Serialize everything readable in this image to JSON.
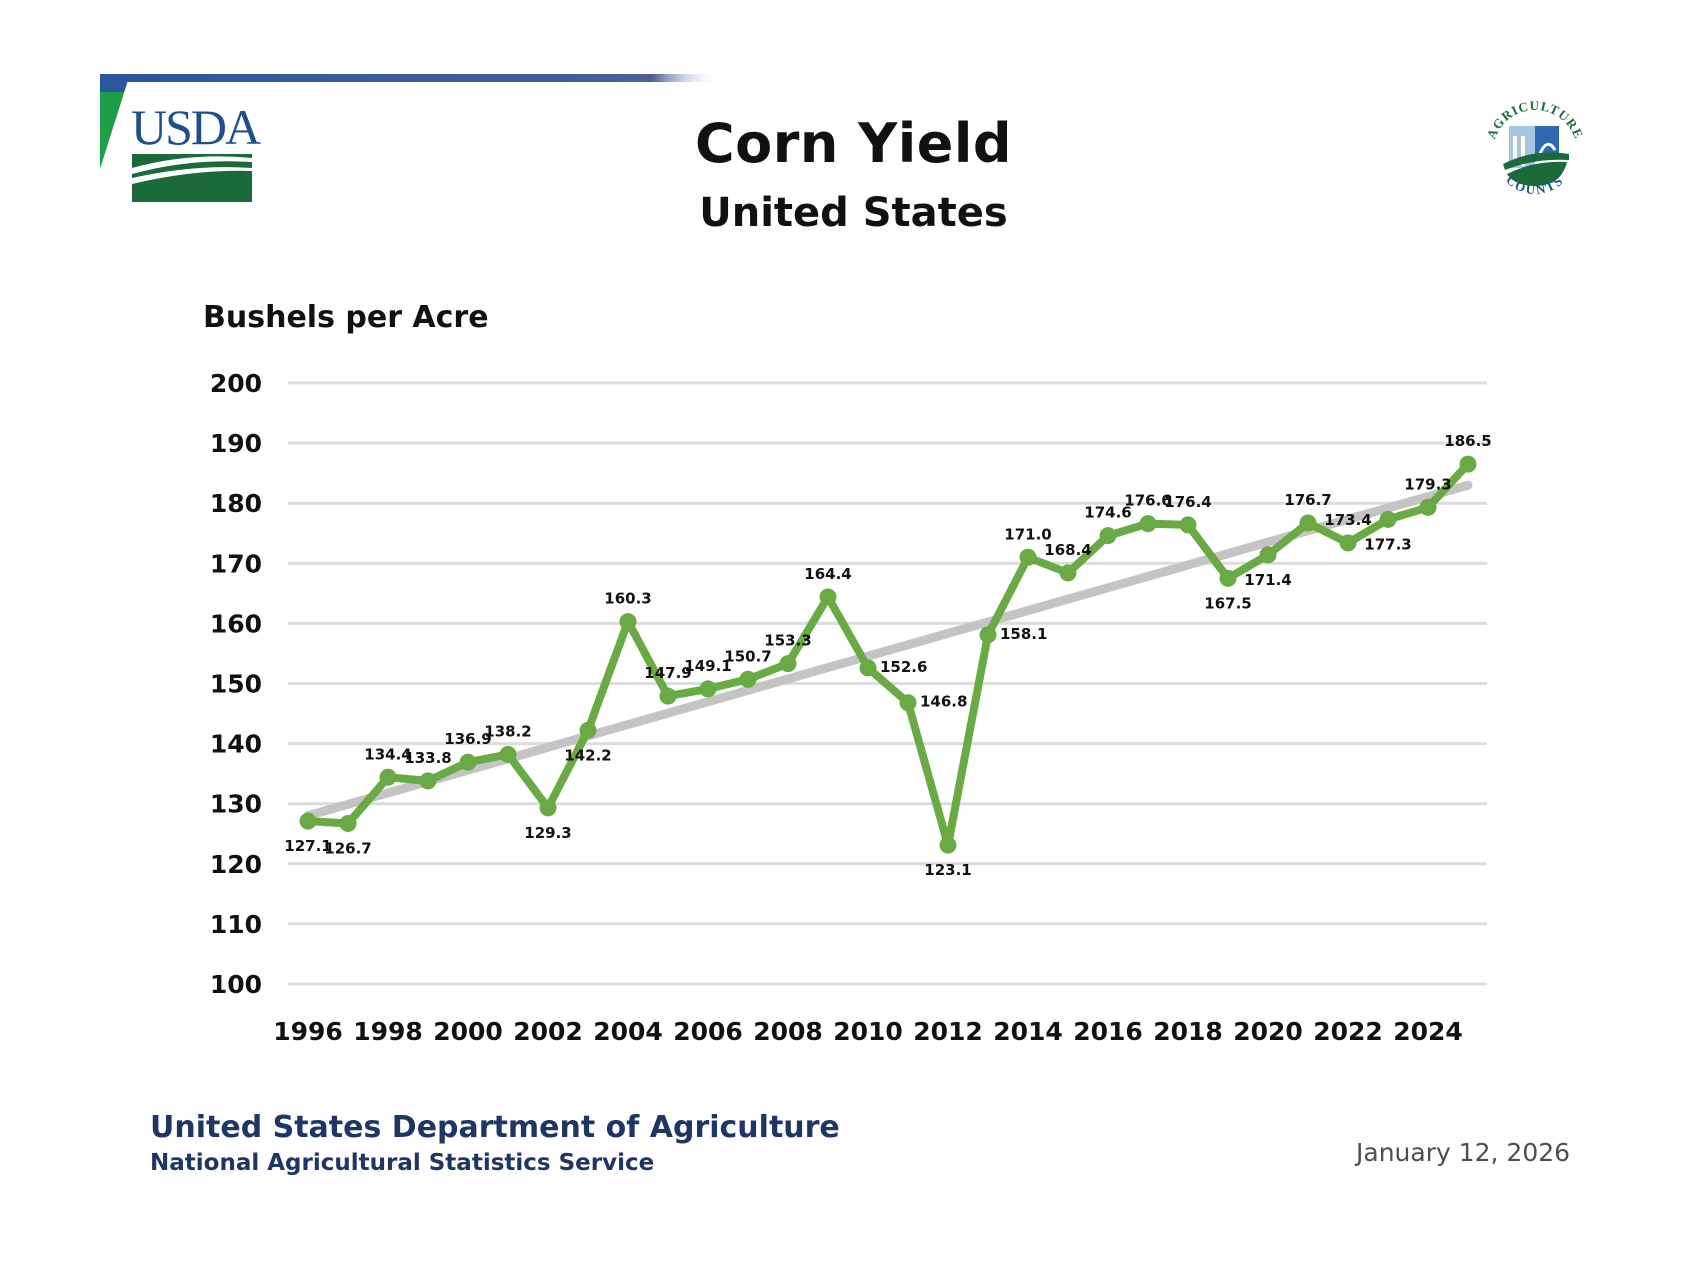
{
  "header": {
    "logo_text": "USDA",
    "badge_top_text": "AGRICULTURE",
    "badge_bottom_text": "COUNTS"
  },
  "footer": {
    "organization": "United States Department of Agriculture",
    "agency": "National Agricultural Statistics Service",
    "date": "January 12, 2026"
  },
  "colors": {
    "series": "#6aaa44",
    "trend": "#c4c4c4",
    "grid": "#dcdcdc",
    "usda_blue": "#1f4e8c",
    "usda_green": "#1b6b3a",
    "footer_blue": "#1f3564"
  },
  "chart_data": {
    "type": "line",
    "title": "Corn Yield",
    "subtitle": "United States",
    "xlabel": "",
    "ylabel": "Bushels per Acre",
    "ylim": [
      100,
      200
    ],
    "xlim": [
      1996,
      2025
    ],
    "grid": true,
    "legend": "none",
    "y_ticks": [
      "200",
      "190",
      "180",
      "170",
      "160",
      "150",
      "140",
      "130",
      "120",
      "110",
      "100"
    ],
    "y_tick_values": [
      200,
      190,
      180,
      170,
      160,
      150,
      140,
      130,
      120,
      110,
      100
    ],
    "x_ticks": [
      "1996",
      "1998",
      "2000",
      "2002",
      "2004",
      "2006",
      "2008",
      "2010",
      "2012",
      "2014",
      "2016",
      "2018",
      "2020",
      "2022",
      "2024"
    ],
    "x_tick_values": [
      1996,
      1998,
      2000,
      2002,
      2004,
      2006,
      2008,
      2010,
      2012,
      2014,
      2016,
      2018,
      2020,
      2022,
      2024
    ],
    "series": [
      {
        "name": "Corn Yield",
        "x": [
          1996,
          1997,
          1998,
          1999,
          2000,
          2001,
          2002,
          2003,
          2004,
          2005,
          2006,
          2007,
          2008,
          2009,
          2010,
          2011,
          2012,
          2013,
          2014,
          2015,
          2016,
          2017,
          2018,
          2019,
          2020,
          2021,
          2022,
          2023,
          2024,
          2025
        ],
        "values": [
          127.1,
          126.7,
          134.4,
          133.8,
          136.9,
          138.2,
          129.3,
          142.2,
          160.3,
          147.9,
          149.1,
          150.7,
          153.3,
          164.4,
          152.6,
          146.8,
          123.1,
          158.1,
          171.0,
          168.4,
          174.6,
          176.6,
          176.4,
          167.5,
          171.4,
          176.7,
          173.4,
          177.3,
          179.3,
          186.5
        ],
        "labels": [
          "127.1",
          "126.7",
          "134.4",
          "133.8",
          "136.9",
          "138.2",
          "129.3",
          "142.2",
          "160.3",
          "147.9",
          "149.1",
          "150.7",
          "153.3",
          "164.4",
          "152.6",
          "146.8",
          "123.1",
          "158.1",
          "171.0",
          "168.4",
          "174.6",
          "176.6",
          "176.4",
          "167.5",
          "171.4",
          "176.7",
          "173.4",
          "177.3",
          "179.3",
          "186.5"
        ],
        "label_side": [
          "below",
          "below",
          "above",
          "above",
          "above",
          "above",
          "below",
          "below",
          "above",
          "above",
          "above",
          "above",
          "above",
          "above",
          "right",
          "right",
          "below",
          "right",
          "above",
          "above",
          "above",
          "above",
          "above",
          "below",
          "below",
          "above",
          "above",
          "below",
          "above",
          "above"
        ]
      },
      {
        "name": "Trend",
        "x": [
          1996,
          2025
        ],
        "values": [
          128.0,
          183.0
        ]
      }
    ]
  }
}
